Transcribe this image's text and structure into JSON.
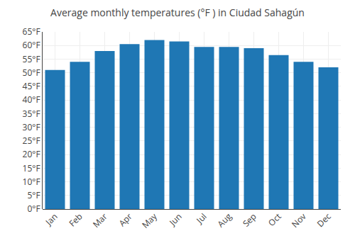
{
  "chart_data": {
    "type": "bar",
    "title": "Average monthly temperatures (°F ) in Ciudad Sahagún",
    "categories": [
      "Jan",
      "Feb",
      "Mar",
      "Apr",
      "May",
      "Jun",
      "Jul",
      "Aug",
      "Sep",
      "Oct",
      "Nov",
      "Dec"
    ],
    "values": [
      51,
      54,
      58,
      60.5,
      62,
      61.5,
      59.5,
      59.5,
      59,
      56.5,
      54,
      52
    ],
    "ylim": [
      0,
      65
    ],
    "yticks": [
      {
        "value": 0,
        "label": "0°F"
      },
      {
        "value": 5,
        "label": "5°F"
      },
      {
        "value": 10,
        "label": "10°F"
      },
      {
        "value": 15,
        "label": "15°F"
      },
      {
        "value": 20,
        "label": "20°F"
      },
      {
        "value": 25,
        "label": "25°F"
      },
      {
        "value": 30,
        "label": "30°F"
      },
      {
        "value": 35,
        "label": "35°F"
      },
      {
        "value": 40,
        "label": "40°F"
      },
      {
        "value": 45,
        "label": "45°F"
      },
      {
        "value": 50,
        "label": "50°F"
      },
      {
        "value": 55,
        "label": "55°F"
      },
      {
        "value": 60,
        "label": "60°F"
      },
      {
        "value": 65,
        "label": "65°F"
      }
    ],
    "grid": true
  }
}
